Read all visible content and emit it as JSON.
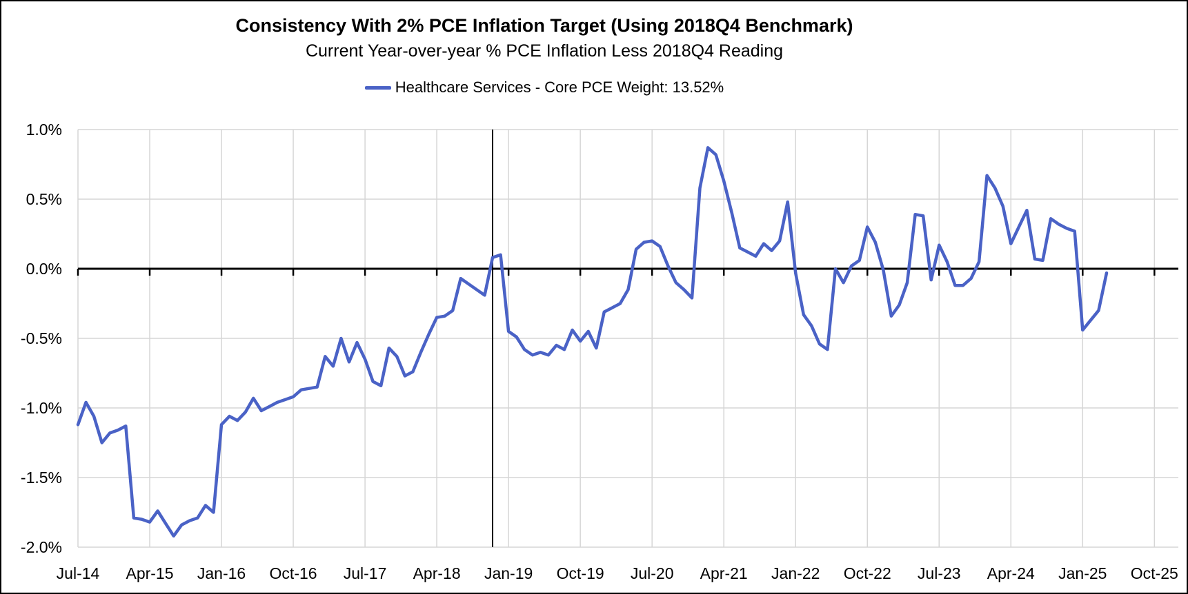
{
  "window": {
    "background": "#ffffff",
    "border_color": "#000000"
  },
  "header": {
    "title": "Consistency With 2% PCE Inflation Target (Using 2018Q4 Benchmark)",
    "subtitle": "Current Year-over-year % PCE Inflation Less 2018Q4 Reading"
  },
  "legend": {
    "series_label": "Healthcare Services - Core PCE Weight: 13.52%",
    "swatch_color": "#4a62c6"
  },
  "chart_data": {
    "type": "line",
    "title": "Consistency With 2% PCE Inflation Target (Using 2018Q4 Benchmark)",
    "subtitle": "Current Year-over-year % PCE Inflation Less 2018Q4 Reading",
    "xlabel": "",
    "ylabel": "",
    "ylim": [
      -2.0,
      1.0
    ],
    "y_tick_step": 0.5,
    "y_tick_labels": [
      "1.0%",
      "0.5%",
      "0.0%",
      "-0.5%",
      "-1.0%",
      "-1.5%",
      "-2.0%"
    ],
    "x_tick_labels": [
      "Jul-14",
      "Apr-15",
      "Jan-16",
      "Oct-16",
      "Jul-17",
      "Apr-18",
      "Jan-19",
      "Oct-19",
      "Jul-20",
      "Apr-21",
      "Jan-22",
      "Oct-22",
      "Jul-23",
      "Apr-24",
      "Jan-25",
      "Oct-25"
    ],
    "x_tick_interval_months": 9,
    "x_total_months": 138,
    "grid": true,
    "gridline_color": "#d6d6d6",
    "zero_axis": true,
    "zero_axis_color": "#000000",
    "benchmark_vline_month": "Nov-18",
    "benchmark_vline_index": 52,
    "legend_position": "top",
    "series": [
      {
        "name": "Healthcare Services - Core PCE Weight: 13.52%",
        "color": "#4a62c6",
        "start": "Jul-14",
        "end": "Apr-25",
        "frequency": "monthly",
        "unit": "%",
        "values": [
          -1.12,
          -0.96,
          -1.06,
          -1.25,
          -1.18,
          -1.16,
          -1.13,
          -1.79,
          -1.8,
          -1.82,
          -1.74,
          -1.83,
          -1.92,
          -1.84,
          -1.81,
          -1.79,
          -1.7,
          -1.75,
          -1.12,
          -1.06,
          -1.09,
          -1.03,
          -0.93,
          -1.02,
          -0.99,
          -0.96,
          -0.94,
          -0.92,
          -0.87,
          -0.86,
          -0.85,
          -0.63,
          -0.7,
          -0.5,
          -0.67,
          -0.53,
          -0.65,
          -0.81,
          -0.84,
          -0.57,
          -0.63,
          -0.77,
          -0.74,
          -0.6,
          -0.47,
          -0.35,
          -0.34,
          -0.3,
          -0.07,
          -0.11,
          -0.15,
          -0.19,
          0.08,
          0.1,
          -0.45,
          -0.49,
          -0.58,
          -0.62,
          -0.6,
          -0.62,
          -0.55,
          -0.58,
          -0.44,
          -0.52,
          -0.45,
          -0.57,
          -0.31,
          -0.28,
          -0.25,
          -0.15,
          0.14,
          0.19,
          0.2,
          0.16,
          0.02,
          -0.1,
          -0.15,
          -0.21,
          0.58,
          0.87,
          0.82,
          0.63,
          0.4,
          0.15,
          0.12,
          0.09,
          0.18,
          0.13,
          0.2,
          0.48,
          -0.03,
          -0.33,
          -0.41,
          -0.54,
          -0.58,
          0.0,
          -0.1,
          0.02,
          0.06,
          0.3,
          0.19,
          -0.01,
          -0.34,
          -0.26,
          -0.1,
          0.39,
          0.38,
          -0.08,
          0.17,
          0.05,
          -0.12,
          -0.12,
          -0.07,
          0.05,
          0.67,
          0.58,
          0.45,
          0.18,
          0.3,
          0.42,
          0.07,
          0.06,
          0.36,
          0.32,
          0.29,
          0.27,
          -0.44,
          -0.37,
          -0.3,
          -0.03
        ]
      }
    ]
  }
}
